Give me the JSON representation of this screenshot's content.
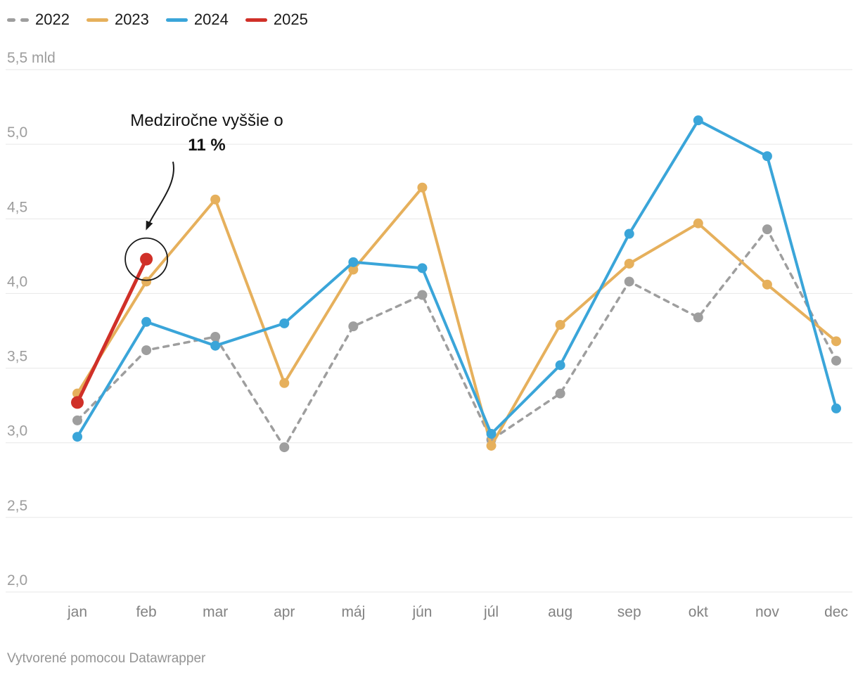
{
  "chart_data": {
    "type": "line",
    "unit": "mld",
    "categories": [
      "jan",
      "feb",
      "mar",
      "apr",
      "máj",
      "jún",
      "júl",
      "aug",
      "sep",
      "okt",
      "nov",
      "dec"
    ],
    "series": [
      {
        "name": "2022",
        "color": "#9e9e9e",
        "style": "dashed",
        "values": [
          3.15,
          3.62,
          3.71,
          2.97,
          3.78,
          3.99,
          3.02,
          3.33,
          4.08,
          3.84,
          4.43,
          3.55
        ]
      },
      {
        "name": "2023",
        "color": "#e6b05c",
        "style": "solid",
        "values": [
          3.33,
          4.08,
          4.63,
          3.4,
          4.16,
          4.71,
          2.98,
          3.79,
          4.2,
          4.47,
          4.06,
          3.68
        ]
      },
      {
        "name": "2024",
        "color": "#3aa5d9",
        "style": "solid",
        "values": [
          3.04,
          3.81,
          3.65,
          3.8,
          4.21,
          4.17,
          3.06,
          3.52,
          4.4,
          5.16,
          4.92,
          3.23
        ]
      },
      {
        "name": "2025",
        "color": "#d03028",
        "style": "solid",
        "values": [
          3.27,
          4.23,
          null,
          null,
          null,
          null,
          null,
          null,
          null,
          null,
          null,
          null
        ]
      }
    ],
    "ylim": [
      2.0,
      5.5
    ],
    "y_ticks": [
      {
        "v": 5.5,
        "label": "5,5 mld"
      },
      {
        "v": 5.0,
        "label": "5,0"
      },
      {
        "v": 4.5,
        "label": "4,5"
      },
      {
        "v": 4.0,
        "label": "4,0"
      },
      {
        "v": 3.5,
        "label": "3,5"
      },
      {
        "v": 3.0,
        "label": "3,0"
      },
      {
        "v": 2.5,
        "label": "2,5"
      },
      {
        "v": 2.0,
        "label": "2,0"
      }
    ],
    "grid": "horizontal",
    "legend_position": "top-left",
    "annotation": {
      "line1": "Medziročne vyššie o",
      "line2": "11 %",
      "points_to": {
        "series": "2025",
        "category": "feb",
        "value": 4.23
      }
    }
  },
  "footer": {
    "credit": "Vytvorené pomocou Datawrapper"
  }
}
